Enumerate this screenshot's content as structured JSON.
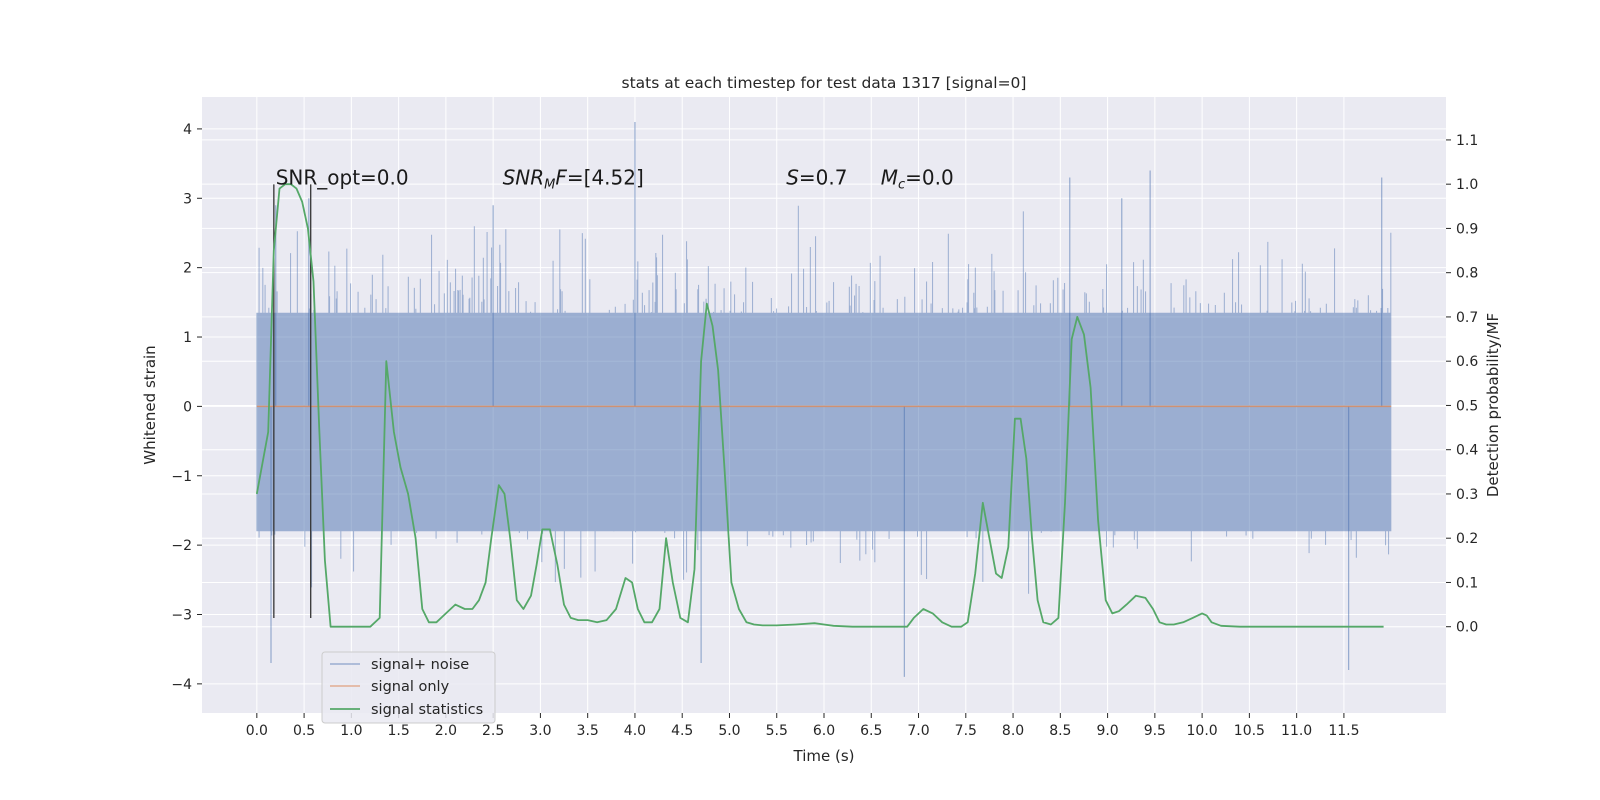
{
  "chart_data": {
    "type": "line",
    "title": "stats at each timestep for test data 1317 [signal=0]",
    "xlabel": "Time (s)",
    "ylabel": "Whitened strain",
    "ylabel_right": "Detection probability/MF",
    "xlim": [
      -0.58,
      12.58
    ],
    "ylim": [
      -4.42,
      4.46
    ],
    "ylim_right": [
      -0.195,
      1.197
    ],
    "x_ticks": [
      "0.0",
      "0.5",
      "1.0",
      "1.5",
      "2.0",
      "2.5",
      "3.0",
      "3.5",
      "4.0",
      "4.5",
      "5.0",
      "5.5",
      "6.0",
      "6.5",
      "7.0",
      "7.5",
      "8.0",
      "8.5",
      "9.0",
      "9.5",
      "10.0",
      "10.5",
      "11.0",
      "11.5"
    ],
    "y_ticks": [
      "4",
      "3",
      "2",
      "1",
      "0",
      "−1",
      "−2",
      "−3",
      "−4"
    ],
    "y_ticks_right": [
      "1.1",
      "1.0",
      "0.9",
      "0.8",
      "0.7",
      "0.6",
      "0.5",
      "0.4",
      "0.3",
      "0.2",
      "0.1",
      "0.0"
    ],
    "grid": true,
    "legend_position": "lower-left",
    "annotations": [
      {
        "text": "SNR_opt=0.0",
        "x": 0.2,
        "y": 3.2
      },
      {
        "text": "SNRMF=[4.52]",
        "math": "SNR_{MF}=[4.52]",
        "x": 2.6,
        "y": 3.2
      },
      {
        "text": "S=0.7",
        "math": "S=0.7",
        "x": 5.6,
        "y": 3.2
      },
      {
        "text": "Mc=0.0",
        "math": "M_c=0.0",
        "x": 6.6,
        "y": 3.2
      }
    ],
    "vlines": [
      {
        "x": 0.18,
        "y": [
          -3.05,
          3.2
        ]
      },
      {
        "x": 0.57,
        "y": [
          -3.05,
          3.2
        ]
      }
    ],
    "series": [
      {
        "name": "signal+ noise",
        "color": "#4c72b0",
        "axis": "left",
        "kind": "noise",
        "x_range": [
          0.0,
          12.0
        ],
        "core_band": [
          -1.8,
          1.35
        ],
        "envelope": [
          [
            0.0,
            -2.2,
            2.0
          ],
          [
            12.0,
            -2.2,
            2.6
          ]
        ],
        "extremes": [
          {
            "x": 0.15,
            "y": -3.7
          },
          {
            "x": 0.2,
            "y": 2.9
          },
          {
            "x": 0.55,
            "y": 3.0
          },
          {
            "x": 2.5,
            "y": 2.9
          },
          {
            "x": 4.0,
            "y": 4.1
          },
          {
            "x": 4.7,
            "y": -3.7
          },
          {
            "x": 6.85,
            "y": -3.9
          },
          {
            "x": 8.6,
            "y": 3.3
          },
          {
            "x": 9.15,
            "y": 3.0
          },
          {
            "x": 9.45,
            "y": 3.4
          },
          {
            "x": 11.55,
            "y": -3.8
          },
          {
            "x": 11.9,
            "y": 3.3
          }
        ]
      },
      {
        "name": "signal only",
        "color": "#dd8452",
        "axis": "left",
        "x": [
          0.0,
          12.0
        ],
        "y": [
          0.0,
          0.0
        ]
      },
      {
        "name": "signal statistics",
        "color": "#55a868",
        "axis": "right",
        "x": [
          0.0,
          0.06,
          0.12,
          0.18,
          0.24,
          0.3,
          0.36,
          0.42,
          0.48,
          0.54,
          0.6,
          0.66,
          0.72,
          0.78,
          0.9,
          1.05,
          1.2,
          1.3,
          1.37,
          1.45,
          1.52,
          1.6,
          1.68,
          1.75,
          1.82,
          1.9,
          2.0,
          2.1,
          2.2,
          2.28,
          2.35,
          2.42,
          2.48,
          2.56,
          2.62,
          2.68,
          2.75,
          2.82,
          2.9,
          2.96,
          3.02,
          3.1,
          3.18,
          3.25,
          3.32,
          3.4,
          3.5,
          3.6,
          3.7,
          3.8,
          3.9,
          3.97,
          4.03,
          4.1,
          4.18,
          4.26,
          4.33,
          4.4,
          4.48,
          4.56,
          4.63,
          4.7,
          4.76,
          4.82,
          4.88,
          4.95,
          5.02,
          5.1,
          5.18,
          5.26,
          5.35,
          5.5,
          5.7,
          5.9,
          6.0,
          6.1,
          6.3,
          6.5,
          6.7,
          6.88,
          6.95,
          7.05,
          7.15,
          7.25,
          7.35,
          7.45,
          7.52,
          7.6,
          7.68,
          7.75,
          7.82,
          7.88,
          7.95,
          8.02,
          8.08,
          8.14,
          8.2,
          8.26,
          8.32,
          8.4,
          8.48,
          8.55,
          8.62,
          8.68,
          8.75,
          8.82,
          8.9,
          8.98,
          9.05,
          9.12,
          9.2,
          9.3,
          9.4,
          9.48,
          9.55,
          9.62,
          9.7,
          9.8,
          9.9,
          10.0,
          10.05,
          10.1,
          10.2,
          10.4,
          10.6,
          10.8,
          11.0,
          11.2,
          11.4,
          11.6,
          11.8,
          11.92
        ],
        "y": [
          0.3,
          0.37,
          0.44,
          0.85,
          0.99,
          1.0,
          1.0,
          0.99,
          0.96,
          0.9,
          0.78,
          0.45,
          0.15,
          0.0,
          0.0,
          0.0,
          0.0,
          0.02,
          0.6,
          0.44,
          0.36,
          0.3,
          0.2,
          0.04,
          0.01,
          0.01,
          0.03,
          0.05,
          0.04,
          0.04,
          0.06,
          0.1,
          0.2,
          0.32,
          0.3,
          0.2,
          0.06,
          0.04,
          0.07,
          0.14,
          0.22,
          0.22,
          0.14,
          0.05,
          0.02,
          0.015,
          0.015,
          0.01,
          0.015,
          0.04,
          0.11,
          0.1,
          0.04,
          0.01,
          0.01,
          0.04,
          0.2,
          0.1,
          0.02,
          0.01,
          0.13,
          0.6,
          0.73,
          0.68,
          0.58,
          0.35,
          0.1,
          0.04,
          0.01,
          0.005,
          0.003,
          0.003,
          0.005,
          0.008,
          0.005,
          0.002,
          0.0,
          0.0,
          0.0,
          0.0,
          0.02,
          0.04,
          0.03,
          0.01,
          0.0,
          0.0,
          0.01,
          0.12,
          0.28,
          0.2,
          0.12,
          0.11,
          0.18,
          0.47,
          0.47,
          0.38,
          0.2,
          0.06,
          0.01,
          0.005,
          0.02,
          0.28,
          0.65,
          0.7,
          0.66,
          0.54,
          0.24,
          0.06,
          0.03,
          0.035,
          0.05,
          0.07,
          0.065,
          0.04,
          0.01,
          0.005,
          0.005,
          0.01,
          0.02,
          0.03,
          0.025,
          0.01,
          0.002,
          0.0,
          0.0,
          0.0,
          0.0,
          0.0,
          0.0,
          0.0,
          0.0,
          0.0
        ]
      }
    ]
  }
}
